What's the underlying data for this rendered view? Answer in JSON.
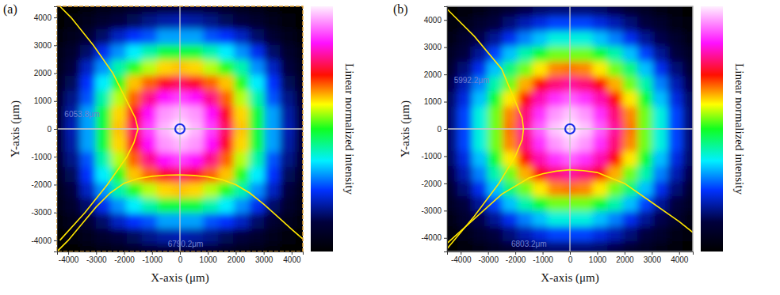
{
  "chart_data": [
    {
      "type": "heatmap",
      "title": "(a)",
      "x_label": "X-axis (μm)",
      "y_label": "Y-axis (μm)",
      "colorbar_label": "Linear normalized intensity",
      "xlim": [
        -4400,
        4400
      ],
      "ylim": [
        -4400,
        4400
      ],
      "xticks": [
        -4000,
        -3000,
        -2000,
        -1000,
        0,
        1000,
        2000,
        3000,
        4000
      ],
      "yticks": [
        -4000,
        -3000,
        -2000,
        -1000,
        0,
        1000,
        2000,
        3000,
        4000
      ],
      "zlim": [
        0,
        1
      ],
      "x": [
        -4400,
        -3850,
        -3300,
        -2750,
        -2200,
        -1650,
        -1100,
        -550,
        0,
        550,
        1100,
        1650,
        2200,
        2750,
        3300,
        3850,
        4400
      ],
      "y": [
        4400,
        3850,
        3300,
        2750,
        2200,
        1650,
        1100,
        550,
        0,
        -550,
        -1100,
        -1650,
        -2200,
        -2750,
        -3300,
        -3850,
        -4400
      ],
      "z": [
        [
          0.0,
          0.01,
          0.02,
          0.04,
          0.06,
          0.08,
          0.1,
          0.11,
          0.11,
          0.11,
          0.1,
          0.08,
          0.06,
          0.04,
          0.02,
          0.01,
          0.0
        ],
        [
          0.01,
          0.03,
          0.06,
          0.09,
          0.12,
          0.14,
          0.17,
          0.19,
          0.2,
          0.19,
          0.17,
          0.14,
          0.12,
          0.09,
          0.06,
          0.03,
          0.01
        ],
        [
          0.02,
          0.06,
          0.1,
          0.15,
          0.21,
          0.25,
          0.27,
          0.32,
          0.32,
          0.32,
          0.27,
          0.25,
          0.21,
          0.15,
          0.1,
          0.06,
          0.02
        ],
        [
          0.04,
          0.09,
          0.15,
          0.24,
          0.31,
          0.37,
          0.42,
          0.48,
          0.48,
          0.48,
          0.42,
          0.37,
          0.31,
          0.24,
          0.15,
          0.09,
          0.04
        ],
        [
          0.06,
          0.12,
          0.21,
          0.31,
          0.42,
          0.51,
          0.57,
          0.62,
          0.63,
          0.62,
          0.57,
          0.51,
          0.42,
          0.31,
          0.21,
          0.12,
          0.06
        ],
        [
          0.08,
          0.14,
          0.25,
          0.37,
          0.51,
          0.63,
          0.68,
          0.74,
          0.77,
          0.74,
          0.68,
          0.63,
          0.51,
          0.37,
          0.25,
          0.14,
          0.08
        ],
        [
          0.1,
          0.17,
          0.27,
          0.42,
          0.57,
          0.68,
          0.79,
          0.85,
          0.88,
          0.85,
          0.79,
          0.68,
          0.57,
          0.42,
          0.27,
          0.17,
          0.1
        ],
        [
          0.11,
          0.19,
          0.32,
          0.48,
          0.62,
          0.74,
          0.85,
          0.94,
          0.96,
          0.94,
          0.85,
          0.74,
          0.62,
          0.48,
          0.32,
          0.19,
          0.11
        ],
        [
          0.11,
          0.2,
          0.32,
          0.48,
          0.63,
          0.77,
          0.88,
          0.96,
          1.0,
          0.96,
          0.88,
          0.77,
          0.63,
          0.48,
          0.32,
          0.2,
          0.11
        ],
        [
          0.11,
          0.19,
          0.32,
          0.48,
          0.62,
          0.74,
          0.85,
          0.94,
          0.96,
          0.94,
          0.85,
          0.74,
          0.62,
          0.48,
          0.32,
          0.19,
          0.11
        ],
        [
          0.1,
          0.17,
          0.27,
          0.42,
          0.57,
          0.68,
          0.79,
          0.85,
          0.88,
          0.85,
          0.79,
          0.68,
          0.57,
          0.42,
          0.27,
          0.17,
          0.1
        ],
        [
          0.08,
          0.14,
          0.25,
          0.37,
          0.51,
          0.63,
          0.68,
          0.74,
          0.77,
          0.74,
          0.68,
          0.63,
          0.51,
          0.37,
          0.25,
          0.14,
          0.08
        ],
        [
          0.06,
          0.12,
          0.21,
          0.31,
          0.42,
          0.51,
          0.57,
          0.62,
          0.63,
          0.62,
          0.57,
          0.51,
          0.42,
          0.31,
          0.21,
          0.12,
          0.06
        ],
        [
          0.04,
          0.09,
          0.15,
          0.24,
          0.31,
          0.37,
          0.42,
          0.48,
          0.48,
          0.48,
          0.42,
          0.37,
          0.31,
          0.24,
          0.15,
          0.09,
          0.04
        ],
        [
          0.02,
          0.06,
          0.1,
          0.15,
          0.21,
          0.25,
          0.27,
          0.32,
          0.32,
          0.32,
          0.27,
          0.25,
          0.21,
          0.15,
          0.1,
          0.06,
          0.02
        ],
        [
          0.01,
          0.03,
          0.06,
          0.09,
          0.12,
          0.14,
          0.17,
          0.19,
          0.2,
          0.19,
          0.17,
          0.14,
          0.12,
          0.09,
          0.06,
          0.03,
          0.01
        ],
        [
          0.0,
          0.01,
          0.02,
          0.04,
          0.06,
          0.08,
          0.1,
          0.11,
          0.11,
          0.11,
          0.1,
          0.08,
          0.06,
          0.04,
          0.02,
          0.01,
          0.0
        ]
      ],
      "profiles": [
        {
          "color": "#ffe600",
          "x": [
            -4400,
            -4000,
            -3500,
            -3000,
            -2500,
            -2000,
            -1500,
            -1000,
            -500,
            0,
            500,
            1000,
            1500,
            2000,
            2500,
            3000,
            3500,
            4000,
            4400
          ],
          "y": [
            -4400,
            -4000,
            -3400,
            -2800,
            -2300,
            -1950,
            -1780,
            -1700,
            -1660,
            -1650,
            -1670,
            -1720,
            -1820,
            -2000,
            -2300,
            -2700,
            -3150,
            -3600,
            -3950
          ]
        },
        {
          "color": "#ffe600",
          "x": [
            -4300,
            -3900,
            -3100,
            -2400,
            -1900,
            -1600,
            -1500,
            -1650,
            -1900,
            -2600,
            -3400,
            -4300
          ],
          "y": [
            4400,
            4000,
            3000,
            2000,
            1000,
            400,
            0,
            -500,
            -1000,
            -2000,
            -3000,
            -4000
          ]
        }
      ],
      "crosshair": {
        "x": 0,
        "y": 0
      },
      "annotations": [
        {
          "text": "6053.8μm",
          "x": -3500,
          "y": 500
        },
        {
          "text": "6790.2μm",
          "x": 200,
          "y": -4150
        }
      ]
    },
    {
      "type": "heatmap",
      "title": "(b)",
      "x_label": "X-axis (μm)",
      "y_label": "Y-axis (μm)",
      "colorbar_label": "Linear normalized intensity",
      "xlim": [
        -4500,
        4500
      ],
      "ylim": [
        -4500,
        4500
      ],
      "xticks": [
        -4000,
        -3000,
        -2000,
        -1000,
        0,
        1000,
        2000,
        3000,
        4000
      ],
      "yticks": [
        -4000,
        -3000,
        -2000,
        -1000,
        0,
        1000,
        2000,
        3000,
        4000
      ],
      "zlim": [
        0,
        1
      ],
      "x": [
        -4400,
        -3850,
        -3300,
        -2750,
        -2200,
        -1650,
        -1100,
        -550,
        0,
        550,
        1100,
        1650,
        2200,
        2750,
        3300,
        3850,
        4400
      ],
      "y": [
        4400,
        3850,
        3300,
        2750,
        2200,
        1650,
        1100,
        550,
        0,
        -550,
        -1100,
        -1650,
        -2200,
        -2750,
        -3300,
        -3850,
        -4400
      ],
      "z": [
        [
          0.01,
          0.03,
          0.05,
          0.08,
          0.1,
          0.13,
          0.15,
          0.16,
          0.16,
          0.16,
          0.15,
          0.13,
          0.1,
          0.08,
          0.05,
          0.03,
          0.01
        ],
        [
          0.03,
          0.05,
          0.09,
          0.12,
          0.16,
          0.2,
          0.23,
          0.26,
          0.26,
          0.26,
          0.23,
          0.2,
          0.16,
          0.12,
          0.09,
          0.05,
          0.03
        ],
        [
          0.05,
          0.09,
          0.13,
          0.18,
          0.24,
          0.3,
          0.34,
          0.39,
          0.39,
          0.39,
          0.34,
          0.3,
          0.24,
          0.18,
          0.13,
          0.09,
          0.05
        ],
        [
          0.08,
          0.12,
          0.18,
          0.26,
          0.34,
          0.42,
          0.49,
          0.54,
          0.54,
          0.54,
          0.49,
          0.42,
          0.34,
          0.26,
          0.18,
          0.12,
          0.08
        ],
        [
          0.1,
          0.16,
          0.24,
          0.34,
          0.45,
          0.54,
          0.61,
          0.66,
          0.67,
          0.66,
          0.61,
          0.54,
          0.45,
          0.34,
          0.24,
          0.16,
          0.1
        ],
        [
          0.13,
          0.2,
          0.3,
          0.42,
          0.54,
          0.64,
          0.72,
          0.78,
          0.8,
          0.78,
          0.72,
          0.64,
          0.54,
          0.42,
          0.3,
          0.2,
          0.13
        ],
        [
          0.15,
          0.23,
          0.34,
          0.49,
          0.61,
          0.72,
          0.81,
          0.87,
          0.9,
          0.87,
          0.81,
          0.72,
          0.61,
          0.49,
          0.34,
          0.23,
          0.15
        ],
        [
          0.16,
          0.26,
          0.39,
          0.54,
          0.66,
          0.78,
          0.87,
          0.94,
          0.97,
          0.94,
          0.87,
          0.78,
          0.66,
          0.54,
          0.39,
          0.26,
          0.16
        ],
        [
          0.16,
          0.26,
          0.39,
          0.54,
          0.67,
          0.8,
          0.9,
          0.97,
          1.0,
          0.97,
          0.9,
          0.8,
          0.67,
          0.54,
          0.39,
          0.26,
          0.16
        ],
        [
          0.16,
          0.26,
          0.39,
          0.54,
          0.66,
          0.78,
          0.87,
          0.94,
          0.97,
          0.94,
          0.87,
          0.78,
          0.66,
          0.54,
          0.39,
          0.26,
          0.16
        ],
        [
          0.15,
          0.23,
          0.34,
          0.49,
          0.61,
          0.72,
          0.81,
          0.87,
          0.9,
          0.87,
          0.81,
          0.72,
          0.61,
          0.49,
          0.34,
          0.23,
          0.15
        ],
        [
          0.13,
          0.2,
          0.3,
          0.42,
          0.54,
          0.64,
          0.72,
          0.78,
          0.8,
          0.78,
          0.72,
          0.64,
          0.54,
          0.42,
          0.3,
          0.2,
          0.13
        ],
        [
          0.1,
          0.16,
          0.24,
          0.34,
          0.45,
          0.54,
          0.61,
          0.66,
          0.67,
          0.66,
          0.61,
          0.54,
          0.45,
          0.34,
          0.24,
          0.16,
          0.1
        ],
        [
          0.08,
          0.12,
          0.18,
          0.26,
          0.34,
          0.42,
          0.49,
          0.54,
          0.54,
          0.54,
          0.49,
          0.42,
          0.34,
          0.26,
          0.18,
          0.12,
          0.08
        ],
        [
          0.05,
          0.09,
          0.13,
          0.18,
          0.24,
          0.3,
          0.34,
          0.39,
          0.39,
          0.39,
          0.34,
          0.3,
          0.24,
          0.18,
          0.13,
          0.09,
          0.05
        ],
        [
          0.03,
          0.05,
          0.09,
          0.12,
          0.16,
          0.2,
          0.23,
          0.26,
          0.26,
          0.26,
          0.23,
          0.2,
          0.16,
          0.12,
          0.09,
          0.05,
          0.03
        ],
        [
          0.01,
          0.03,
          0.05,
          0.08,
          0.1,
          0.13,
          0.15,
          0.16,
          0.16,
          0.16,
          0.15,
          0.13,
          0.1,
          0.08,
          0.05,
          0.03,
          0.01
        ]
      ],
      "profiles": [
        {
          "color": "#ffe600",
          "x": [
            -4500,
            -3500,
            -2500,
            -1500,
            -1000,
            -500,
            0,
            500,
            1000,
            2000,
            3000,
            4000,
            4500
          ],
          "y": [
            -4200,
            -3300,
            -2400,
            -1800,
            -1650,
            -1550,
            -1500,
            -1530,
            -1600,
            -2000,
            -2700,
            -3400,
            -3800
          ]
        },
        {
          "color": "#ffe600",
          "x": [
            -4500,
            -3500,
            -2500,
            -2000,
            -1750,
            -1700,
            -1750,
            -2000,
            -2600,
            -3500,
            -4500
          ],
          "y": [
            4400,
            3400,
            2200,
            1000,
            400,
            0,
            -400,
            -1000,
            -2000,
            -3200,
            -4400
          ]
        }
      ],
      "crosshair": {
        "x": 0,
        "y": 0
      },
      "annotations": [
        {
          "text": "5992.2μm",
          "x": -3600,
          "y": 1750
        },
        {
          "text": "6803.2μm",
          "x": -1500,
          "y": -4250
        }
      ]
    }
  ]
}
